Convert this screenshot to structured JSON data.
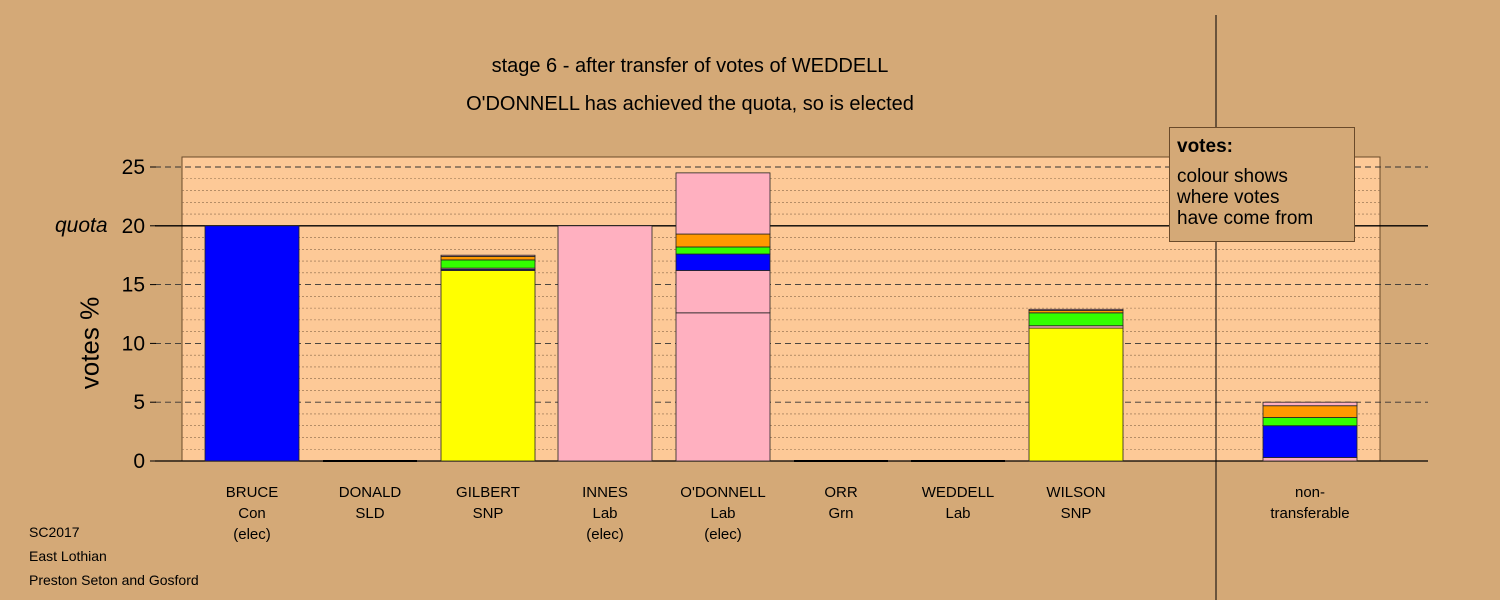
{
  "header": {
    "title": "stage 6 - after transfer of votes of WEDDELL",
    "subtitle": "O'DONNELL has achieved the quota, so is elected"
  },
  "axis": {
    "ylabel": "votes %",
    "quota_label": "quota"
  },
  "legend": {
    "title": "votes:",
    "line1": "colour shows",
    "line2": "where votes",
    "line3": "have come from"
  },
  "footer": {
    "line1": "SC2017",
    "line2": "East Lothian",
    "line3": "Preston Seton and Gosford"
  },
  "colors": {
    "background": "#d4a977",
    "plot_area": "#fdc997",
    "Con": "#0000ff",
    "Lab": "#ffb0c0",
    "SNP": "#ffff00",
    "Grn": "#33ff00",
    "SLD": "#ff9900"
  },
  "chart_data": {
    "type": "bar",
    "stacked": true,
    "ylim": [
      0,
      25.8
    ],
    "yticks": [
      0,
      5,
      10,
      15,
      20,
      25
    ],
    "quota": 20,
    "grid": true,
    "candidates": [
      {
        "name": "BRUCE",
        "party": "Con",
        "status": "(elec)",
        "segments": [
          {
            "party": "Con",
            "value": 20.0
          }
        ]
      },
      {
        "name": "DONALD",
        "party": "SLD",
        "status": "",
        "segments": []
      },
      {
        "name": "GILBERT",
        "party": "SNP",
        "status": "",
        "segments": [
          {
            "party": "SNP",
            "value": 16.2
          },
          {
            "party": "Con",
            "value": 0.1
          },
          {
            "party": "Lab",
            "value": 0.1
          },
          {
            "party": "Grn",
            "value": 0.7
          },
          {
            "party": "SLD",
            "value": 0.3
          },
          {
            "party": "Lab",
            "value": 0.1
          }
        ]
      },
      {
        "name": "INNES",
        "party": "Lab",
        "status": "(elec)",
        "segments": [
          {
            "party": "Lab",
            "value": 20.0
          }
        ]
      },
      {
        "name": "O'DONNELL",
        "party": "Lab",
        "status": "(elec)",
        "segments": [
          {
            "party": "Lab",
            "value": 12.6
          },
          {
            "party": "Lab",
            "value": 3.6
          },
          {
            "party": "Con",
            "value": 1.4
          },
          {
            "party": "Grn",
            "value": 0.6
          },
          {
            "party": "SLD",
            "value": 1.1
          },
          {
            "party": "Lab",
            "value": 5.2
          }
        ]
      },
      {
        "name": "ORR",
        "party": "Grn",
        "status": "",
        "segments": []
      },
      {
        "name": "WEDDELL",
        "party": "Lab",
        "status": "",
        "segments": []
      },
      {
        "name": "WILSON",
        "party": "SNP",
        "status": "",
        "segments": [
          {
            "party": "SNP",
            "value": 11.3
          },
          {
            "party": "Lab",
            "value": 0.2
          },
          {
            "party": "Grn",
            "value": 1.1
          },
          {
            "party": "SLD",
            "value": 0.2
          },
          {
            "party": "Lab",
            "value": 0.1
          }
        ]
      }
    ],
    "nontransferable": {
      "label1": "non-",
      "label2": "transferable",
      "segments": [
        {
          "party": "Lab",
          "value": 0.3
        },
        {
          "party": "Con",
          "value": 2.7
        },
        {
          "party": "Grn",
          "value": 0.7
        },
        {
          "party": "SLD",
          "value": 1.0
        },
        {
          "party": "Lab",
          "value": 0.3
        }
      ]
    }
  }
}
